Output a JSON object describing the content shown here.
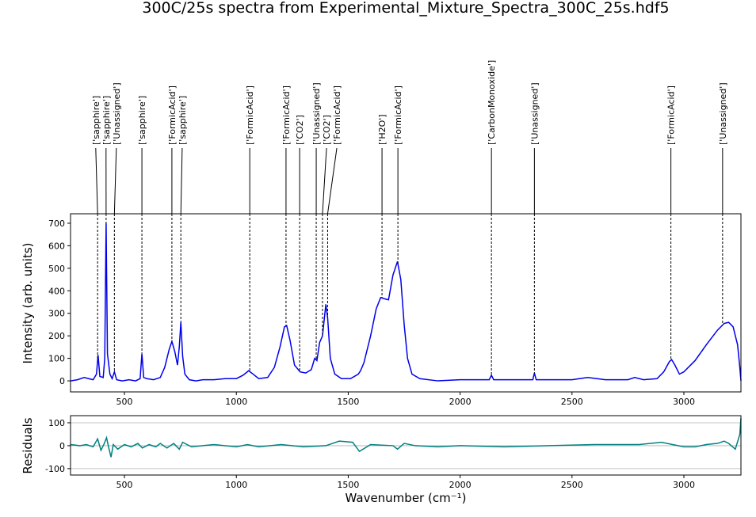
{
  "chart_data": [
    {
      "type": "line",
      "title": "300C/25s spectra from Experimental_Mixture_Spectra_300C_25s.hdf5",
      "ylabel": "Intensity (arb. units)",
      "xlim": [
        259,
        3255
      ],
      "ylim": [
        -49,
        742
      ],
      "xticks": [
        500,
        1000,
        1500,
        2000,
        2500,
        3000
      ],
      "yticks": [
        0,
        100,
        200,
        300,
        400,
        500,
        600,
        700
      ],
      "grid": false,
      "x": [
        260,
        290,
        320,
        340,
        360,
        375,
        382,
        390,
        405,
        412,
        418,
        424,
        435,
        445,
        455,
        465,
        490,
        520,
        550,
        570,
        578,
        586,
        600,
        630,
        660,
        680,
        700,
        712,
        725,
        737,
        745,
        752,
        760,
        770,
        790,
        820,
        850,
        900,
        950,
        1000,
        1030,
        1055,
        1075,
        1100,
        1140,
        1170,
        1195,
        1215,
        1225,
        1240,
        1260,
        1285,
        1310,
        1335,
        1350,
        1360,
        1372,
        1385,
        1400,
        1408,
        1420,
        1440,
        1470,
        1510,
        1545,
        1555,
        1570,
        1600,
        1625,
        1645,
        1660,
        1680,
        1700,
        1720,
        1735,
        1750,
        1765,
        1785,
        1820,
        1900,
        2000,
        2100,
        2130,
        2140,
        2150,
        2200,
        2300,
        2325,
        2332,
        2340,
        2400,
        2500,
        2570,
        2650,
        2750,
        2780,
        2820,
        2880,
        2910,
        2935,
        2945,
        2960,
        2980,
        3000,
        3050,
        3100,
        3150,
        3180,
        3200,
        3220,
        3240,
        3250,
        3255
      ],
      "series": [
        {
          "color": "#0000ee",
          "values": [
            0,
            5,
            15,
            10,
            5,
            30,
            115,
            20,
            15,
            100,
            700,
            120,
            30,
            10,
            40,
            5,
            0,
            5,
            0,
            10,
            120,
            15,
            10,
            5,
            15,
            60,
            140,
            175,
            130,
            70,
            150,
            260,
            110,
            30,
            5,
            0,
            5,
            5,
            10,
            10,
            25,
            45,
            30,
            10,
            15,
            60,
            150,
            240,
            245,
            180,
            70,
            40,
            35,
            50,
            100,
            90,
            170,
            200,
            340,
            280,
            100,
            30,
            10,
            10,
            30,
            45,
            80,
            200,
            320,
            370,
            365,
            360,
            470,
            530,
            450,
            250,
            100,
            30,
            10,
            0,
            5,
            5,
            5,
            25,
            5,
            5,
            5,
            5,
            35,
            5,
            5,
            5,
            15,
            5,
            5,
            15,
            5,
            10,
            40,
            85,
            95,
            70,
            30,
            40,
            90,
            160,
            225,
            255,
            260,
            240,
            160,
            60,
            0
          ]
        }
      ],
      "annotations": [
        {
          "label": "['sapphire']",
          "x": 380
        },
        {
          "label": "['sapphire']",
          "x": 418
        },
        {
          "label": "['Unassigned']",
          "x": 455
        },
        {
          "label": "['sapphire']",
          "x": 578
        },
        {
          "label": "['FormicAcid']",
          "x": 712
        },
        {
          "label": "['sapphire']",
          "x": 752
        },
        {
          "label": "['FormicAcid']",
          "x": 1060
        },
        {
          "label": "['FormicAcid']",
          "x": 1222
        },
        {
          "label": "['CO2']",
          "x": 1283
        },
        {
          "label": "['Unassigned']",
          "x": 1357
        },
        {
          "label": "['CO2']",
          "x": 1385
        },
        {
          "label": "['FormicAcid']",
          "x": 1408
        },
        {
          "label": "['H2O']",
          "x": 1651
        },
        {
          "label": "['FormicAcid']",
          "x": 1722
        },
        {
          "label": "['CarbonMonoxide']",
          "x": 2140
        },
        {
          "label": "['Unassigned']",
          "x": 2332
        },
        {
          "label": "['FormicAcid']",
          "x": 2942
        },
        {
          "label": "['Unassigned']",
          "x": 3173
        }
      ]
    },
    {
      "type": "line",
      "xlabel": "Wavenumber (cm⁻¹)",
      "ylabel": "Residuals",
      "xlim": [
        259,
        3255
      ],
      "ylim": [
        -128,
        131
      ],
      "xticks": [
        500,
        1000,
        1500,
        2000,
        2500,
        3000
      ],
      "yticks": [
        -100,
        0,
        100
      ],
      "grid": true,
      "x": [
        260,
        300,
        330,
        360,
        380,
        395,
        410,
        420,
        430,
        440,
        450,
        470,
        500,
        530,
        560,
        580,
        610,
        640,
        660,
        690,
        720,
        745,
        760,
        800,
        850,
        900,
        1000,
        1050,
        1100,
        1200,
        1300,
        1400,
        1460,
        1520,
        1550,
        1600,
        1700,
        1720,
        1750,
        1800,
        1900,
        2000,
        2200,
        2400,
        2600,
        2800,
        2900,
        3000,
        3050,
        3100,
        3150,
        3180,
        3200,
        3230,
        3250,
        3255
      ],
      "series": [
        {
          "color": "#008080",
          "values": [
            5,
            0,
            5,
            -5,
            30,
            -20,
            10,
            35,
            -10,
            -50,
            5,
            -15,
            5,
            -5,
            10,
            -10,
            5,
            -5,
            10,
            -10,
            10,
            -15,
            15,
            -5,
            0,
            5,
            -5,
            5,
            -5,
            5,
            -5,
            0,
            20,
            15,
            -25,
            5,
            0,
            -15,
            10,
            0,
            -5,
            0,
            -5,
            0,
            5,
            5,
            15,
            -5,
            -5,
            5,
            10,
            20,
            10,
            -15,
            50,
            120
          ]
        }
      ]
    }
  ]
}
